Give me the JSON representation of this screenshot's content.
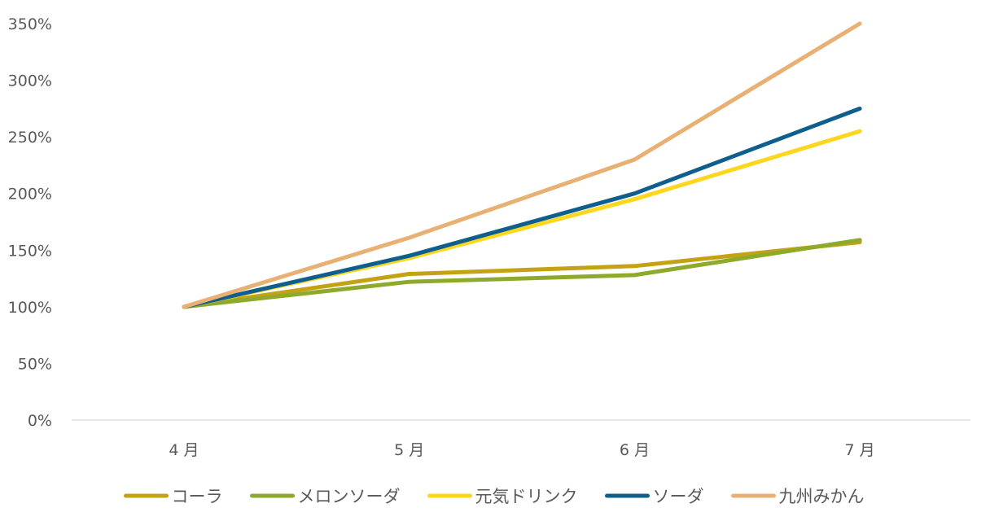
{
  "chart_data": {
    "type": "line",
    "categories": [
      "4 月",
      "5 月",
      "6 月",
      "7 月"
    ],
    "y_tick_labels": [
      "0%",
      "50%",
      "100%",
      "150%",
      "200%",
      "250%",
      "300%",
      "350%"
    ],
    "ylim": [
      0,
      350
    ],
    "y_unit": "%",
    "grid": false,
    "legend_position": "bottom",
    "series": [
      {
        "name": "コーラ",
        "values": [
          100,
          129,
          136,
          157
        ],
        "color": "#C5A114"
      },
      {
        "name": "メロンソーダ",
        "values": [
          100,
          122,
          128,
          159
        ],
        "color": "#8EAA2B"
      },
      {
        "name": "元気ドリンク",
        "values": [
          100,
          143,
          195,
          255
        ],
        "color": "#FDD71E"
      },
      {
        "name": "ソーダ",
        "values": [
          100,
          145,
          200,
          275
        ],
        "color": "#0E5F8E"
      },
      {
        "name": "九州みかん",
        "values": [
          100,
          161,
          230,
          350
        ],
        "color": "#E9B074"
      }
    ]
  }
}
